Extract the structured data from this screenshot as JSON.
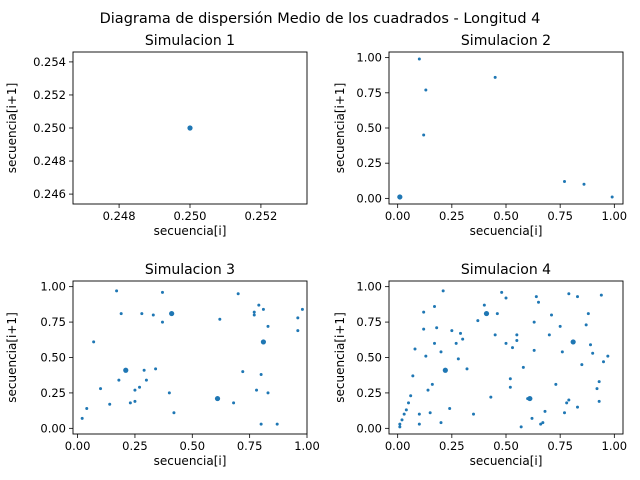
{
  "figure": {
    "suptitle": "Diagrama de dispersión Medio de los cuadrados - Longitud 4"
  },
  "chart_data": [
    {
      "type": "scatter",
      "title": "Simulacion 1",
      "xlabel": "secuencia[i]",
      "ylabel": "secuencia[i+1]",
      "xlim": [
        0.2467,
        0.2533
      ],
      "ylim": [
        0.2454,
        0.2546
      ],
      "xticks": [
        0.248,
        0.25,
        0.252
      ],
      "xtick_labels": [
        "0.248",
        "0.250",
        "0.252"
      ],
      "yticks": [
        0.246,
        0.248,
        0.25,
        0.252,
        0.254
      ],
      "ytick_labels": [
        "0.246",
        "0.248",
        "0.250",
        "0.252",
        "0.254"
      ],
      "grid": false,
      "color": "#1f77b4",
      "points": [
        {
          "x": 0.25,
          "y": 0.25,
          "big": true
        }
      ]
    },
    {
      "type": "scatter",
      "title": "Simulacion 2",
      "xlabel": "secuencia[i]",
      "ylabel": "secuencia[i+1]",
      "xlim": [
        -0.04,
        1.04
      ],
      "ylim": [
        -0.04,
        1.04
      ],
      "xticks": [
        0,
        0.25,
        0.5,
        0.75,
        1
      ],
      "xtick_labels": [
        "0.00",
        "0.25",
        "0.50",
        "0.75",
        "1.00"
      ],
      "yticks": [
        0,
        0.25,
        0.5,
        0.75,
        1
      ],
      "ytick_labels": [
        "0.00",
        "0.25",
        "0.50",
        "0.75",
        "1.00"
      ],
      "grid": false,
      "color": "#1f77b4",
      "points": [
        {
          "x": 0.01,
          "y": 0.01,
          "big": true
        },
        {
          "x": 0.1,
          "y": 0.99
        },
        {
          "x": 0.12,
          "y": 0.45
        },
        {
          "x": 0.13,
          "y": 0.77
        },
        {
          "x": 0.45,
          "y": 0.86
        },
        {
          "x": 0.77,
          "y": 0.12
        },
        {
          "x": 0.86,
          "y": 0.1
        },
        {
          "x": 0.99,
          "y": 0.01
        }
      ]
    },
    {
      "type": "scatter",
      "title": "Simulacion 3",
      "xlabel": "secuencia[i]",
      "ylabel": "secuencia[i+1]",
      "xlim": [
        -0.02,
        1.0
      ],
      "ylim": [
        -0.04,
        1.04
      ],
      "xticks": [
        0,
        0.25,
        0.5,
        0.75,
        1
      ],
      "xtick_labels": [
        "0.00",
        "0.25",
        "0.50",
        "0.75",
        "1.00"
      ],
      "yticks": [
        0,
        0.25,
        0.5,
        0.75,
        1
      ],
      "ytick_labels": [
        "0.00",
        "0.25",
        "0.50",
        "0.75",
        "1.00"
      ],
      "grid": false,
      "color": "#1f77b4",
      "points": [
        {
          "x": 0.21,
          "y": 0.41,
          "big": true
        },
        {
          "x": 0.41,
          "y": 0.81,
          "big": true
        },
        {
          "x": 0.81,
          "y": 0.61,
          "big": true
        },
        {
          "x": 0.61,
          "y": 0.21,
          "big": true
        },
        {
          "x": 0.02,
          "y": 0.07
        },
        {
          "x": 0.04,
          "y": 0.14
        },
        {
          "x": 0.07,
          "y": 0.61
        },
        {
          "x": 0.1,
          "y": 0.28
        },
        {
          "x": 0.14,
          "y": 0.17
        },
        {
          "x": 0.17,
          "y": 0.97
        },
        {
          "x": 0.18,
          "y": 0.34
        },
        {
          "x": 0.19,
          "y": 0.81
        },
        {
          "x": 0.23,
          "y": 0.18
        },
        {
          "x": 0.25,
          "y": 0.27
        },
        {
          "x": 0.25,
          "y": 0.19
        },
        {
          "x": 0.27,
          "y": 0.29
        },
        {
          "x": 0.28,
          "y": 0.81
        },
        {
          "x": 0.29,
          "y": 0.41
        },
        {
          "x": 0.3,
          "y": 0.34
        },
        {
          "x": 0.33,
          "y": 0.8
        },
        {
          "x": 0.34,
          "y": 0.42
        },
        {
          "x": 0.37,
          "y": 0.96
        },
        {
          "x": 0.37,
          "y": 0.75
        },
        {
          "x": 0.4,
          "y": 0.25
        },
        {
          "x": 0.42,
          "y": 0.11
        },
        {
          "x": 0.62,
          "y": 0.77
        },
        {
          "x": 0.68,
          "y": 0.18
        },
        {
          "x": 0.7,
          "y": 0.95
        },
        {
          "x": 0.72,
          "y": 0.4
        },
        {
          "x": 0.77,
          "y": 0.8
        },
        {
          "x": 0.77,
          "y": 0.82
        },
        {
          "x": 0.78,
          "y": 0.27
        },
        {
          "x": 0.79,
          "y": 0.87
        },
        {
          "x": 0.8,
          "y": 0.38
        },
        {
          "x": 0.81,
          "y": 0.84
        },
        {
          "x": 0.8,
          "y": 0.03
        },
        {
          "x": 0.83,
          "y": 0.25
        },
        {
          "x": 0.83,
          "y": 0.72
        },
        {
          "x": 0.87,
          "y": 0.03
        },
        {
          "x": 0.96,
          "y": 0.78
        },
        {
          "x": 0.96,
          "y": 0.69
        },
        {
          "x": 0.98,
          "y": 0.84
        }
      ]
    },
    {
      "type": "scatter",
      "title": "Simulacion 4",
      "xlabel": "secuencia[i]",
      "ylabel": "secuencia[i+1]",
      "xlim": [
        -0.04,
        1.04
      ],
      "ylim": [
        -0.04,
        1.04
      ],
      "xticks": [
        0,
        0.25,
        0.5,
        0.75,
        1
      ],
      "xtick_labels": [
        "0.00",
        "0.25",
        "0.50",
        "0.75",
        "1.00"
      ],
      "yticks": [
        0,
        0.25,
        0.5,
        0.75,
        1
      ],
      "ytick_labels": [
        "0.00",
        "0.25",
        "0.50",
        "0.75",
        "1.00"
      ],
      "grid": false,
      "color": "#1f77b4",
      "points": [
        {
          "x": 0.22,
          "y": 0.41,
          "big": true
        },
        {
          "x": 0.41,
          "y": 0.81,
          "big": true
        },
        {
          "x": 0.81,
          "y": 0.61,
          "big": true
        },
        {
          "x": 0.61,
          "y": 0.21,
          "big": true
        },
        {
          "x": 0.01,
          "y": 0.01
        },
        {
          "x": 0.01,
          "y": 0.03
        },
        {
          "x": 0.02,
          "y": 0.06
        },
        {
          "x": 0.03,
          "y": 0.1
        },
        {
          "x": 0.04,
          "y": 0.13
        },
        {
          "x": 0.05,
          "y": 0.18
        },
        {
          "x": 0.06,
          "y": 0.23
        },
        {
          "x": 0.07,
          "y": 0.37
        },
        {
          "x": 0.08,
          "y": 0.56
        },
        {
          "x": 0.1,
          "y": 0.1
        },
        {
          "x": 0.1,
          "y": 0.03
        },
        {
          "x": 0.12,
          "y": 0.7
        },
        {
          "x": 0.12,
          "y": 0.82
        },
        {
          "x": 0.13,
          "y": 0.51
        },
        {
          "x": 0.14,
          "y": 0.27
        },
        {
          "x": 0.15,
          "y": 0.11
        },
        {
          "x": 0.16,
          "y": 0.31
        },
        {
          "x": 0.17,
          "y": 0.6
        },
        {
          "x": 0.17,
          "y": 0.86
        },
        {
          "x": 0.18,
          "y": 0.71
        },
        {
          "x": 0.2,
          "y": 0.04
        },
        {
          "x": 0.2,
          "y": 0.54
        },
        {
          "x": 0.21,
          "y": 0.97
        },
        {
          "x": 0.24,
          "y": 0.14
        },
        {
          "x": 0.25,
          "y": 0.69
        },
        {
          "x": 0.27,
          "y": 0.6
        },
        {
          "x": 0.28,
          "y": 0.49
        },
        {
          "x": 0.29,
          "y": 0.67
        },
        {
          "x": 0.3,
          "y": 0.63
        },
        {
          "x": 0.32,
          "y": 0.42
        },
        {
          "x": 0.35,
          "y": 0.1
        },
        {
          "x": 0.37,
          "y": 0.76
        },
        {
          "x": 0.4,
          "y": 0.87
        },
        {
          "x": 0.43,
          "y": 0.22
        },
        {
          "x": 0.45,
          "y": 0.66
        },
        {
          "x": 0.46,
          "y": 0.81
        },
        {
          "x": 0.48,
          "y": 0.96
        },
        {
          "x": 0.5,
          "y": 0.92
        },
        {
          "x": 0.5,
          "y": 0.6
        },
        {
          "x": 0.52,
          "y": 0.35
        },
        {
          "x": 0.52,
          "y": 0.29
        },
        {
          "x": 0.53,
          "y": 0.57
        },
        {
          "x": 0.55,
          "y": 0.62
        },
        {
          "x": 0.55,
          "y": 0.66
        },
        {
          "x": 0.57,
          "y": 0.01
        },
        {
          "x": 0.58,
          "y": 0.43
        },
        {
          "x": 0.6,
          "y": 0.21
        },
        {
          "x": 0.62,
          "y": 0.07
        },
        {
          "x": 0.63,
          "y": 0.75
        },
        {
          "x": 0.63,
          "y": 0.55
        },
        {
          "x": 0.64,
          "y": 0.93
        },
        {
          "x": 0.65,
          "y": 0.89
        },
        {
          "x": 0.66,
          "y": 0.03
        },
        {
          "x": 0.67,
          "y": 0.04
        },
        {
          "x": 0.68,
          "y": 0.12
        },
        {
          "x": 0.7,
          "y": 0.66
        },
        {
          "x": 0.71,
          "y": 0.8
        },
        {
          "x": 0.73,
          "y": 0.31
        },
        {
          "x": 0.75,
          "y": 0.72
        },
        {
          "x": 0.76,
          "y": 0.54
        },
        {
          "x": 0.77,
          "y": 0.11
        },
        {
          "x": 0.78,
          "y": 0.18
        },
        {
          "x": 0.79,
          "y": 0.95
        },
        {
          "x": 0.79,
          "y": 0.2
        },
        {
          "x": 0.83,
          "y": 0.93
        },
        {
          "x": 0.83,
          "y": 0.15
        },
        {
          "x": 0.85,
          "y": 0.45
        },
        {
          "x": 0.87,
          "y": 0.73
        },
        {
          "x": 0.88,
          "y": 0.81
        },
        {
          "x": 0.89,
          "y": 0.59
        },
        {
          "x": 0.9,
          "y": 0.53
        },
        {
          "x": 0.92,
          "y": 0.28
        },
        {
          "x": 0.93,
          "y": 0.19
        },
        {
          "x": 0.93,
          "y": 0.33
        },
        {
          "x": 0.94,
          "y": 0.94
        },
        {
          "x": 0.95,
          "y": 0.47
        },
        {
          "x": 0.97,
          "y": 0.51
        }
      ]
    }
  ]
}
